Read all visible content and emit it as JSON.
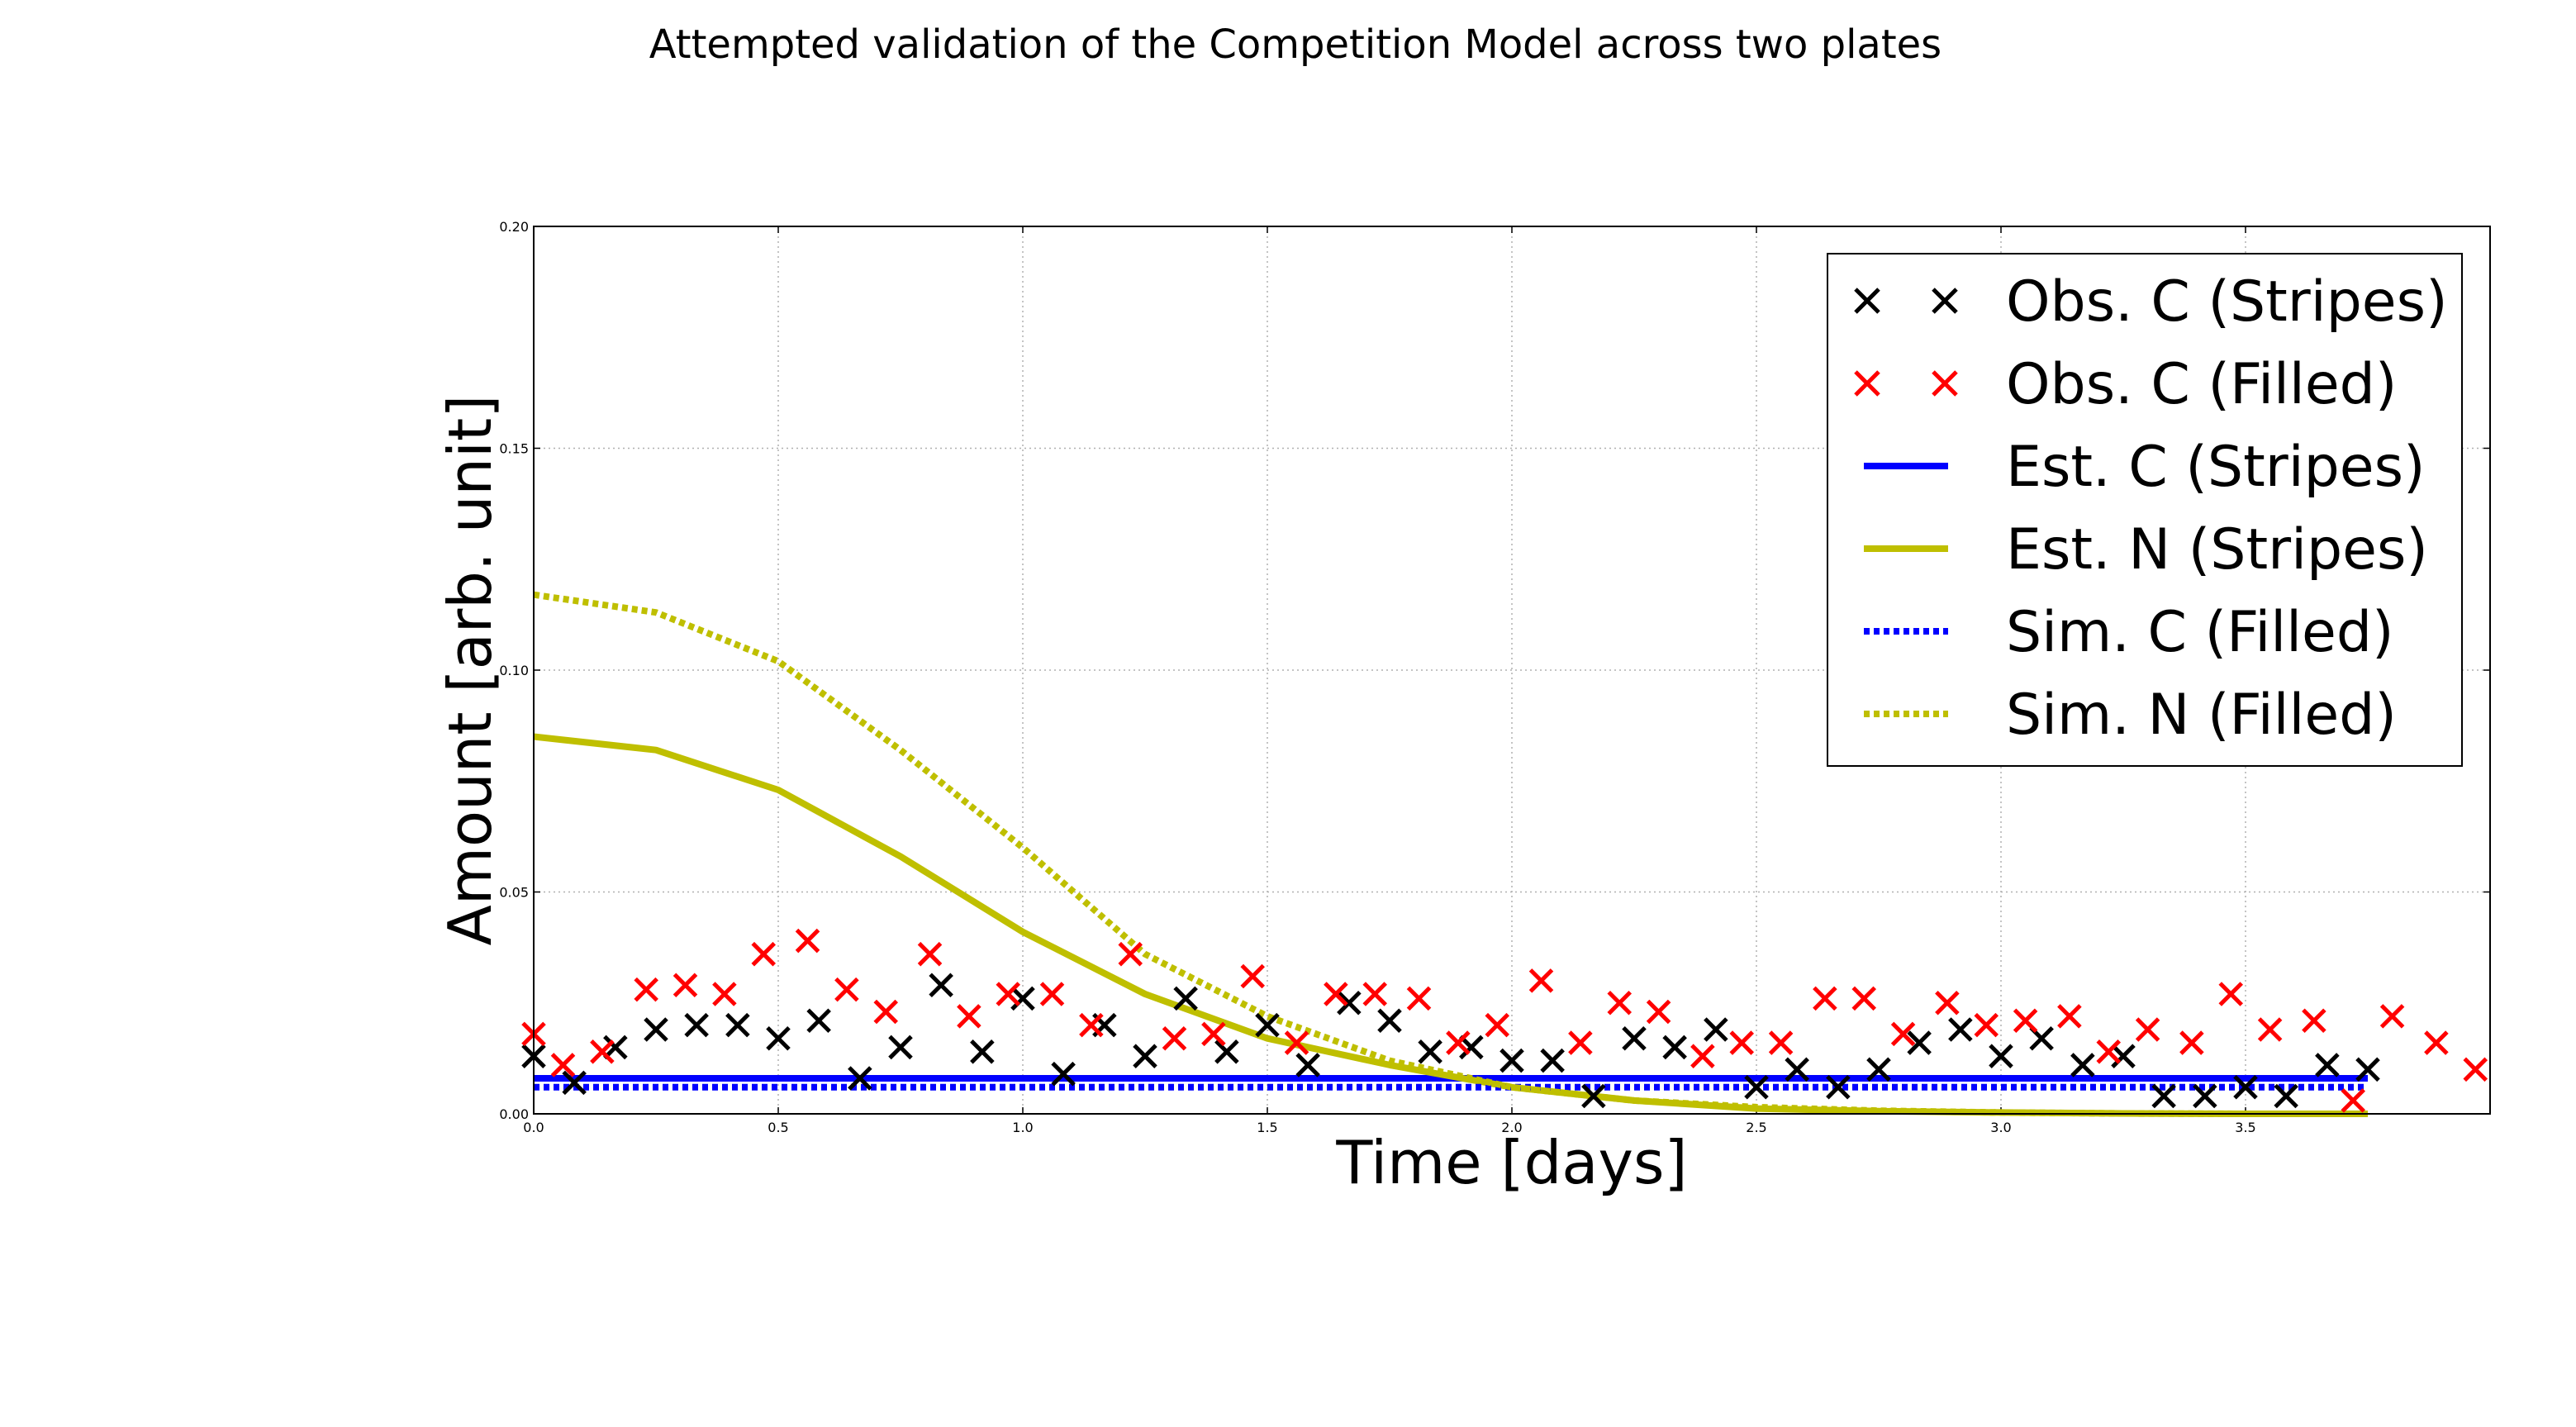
{
  "chart_data": {
    "type": "line",
    "title": "Attempted validation of the Competition Model across two plates",
    "xlabel": "Time [days]",
    "ylabel": "Amount [arb. unit]",
    "xlim": [
      0,
      4.0
    ],
    "ylim": [
      0,
      0.2
    ],
    "x_ticks": [
      "0.0",
      "0.5",
      "1.0",
      "1.5",
      "2.0",
      "2.5",
      "3.0",
      "3.5"
    ],
    "y_ticks": [
      "0.00",
      "0.05",
      "0.10",
      "0.15",
      "0.20"
    ],
    "grid": true,
    "legend_position": "top-right",
    "series": [
      {
        "name": "Obs. C (Stripes)",
        "kind": "scatter",
        "marker": "x",
        "color": "#000000",
        "x": [
          0.0,
          0.083,
          0.167,
          0.25,
          0.333,
          0.417,
          0.5,
          0.583,
          0.667,
          0.75,
          0.833,
          0.917,
          1.0,
          1.083,
          1.167,
          1.25,
          1.333,
          1.417,
          1.5,
          1.583,
          1.667,
          1.75,
          1.833,
          1.917,
          2.0,
          2.083,
          2.167,
          2.25,
          2.333,
          2.417,
          2.5,
          2.583,
          2.667,
          2.75,
          2.833,
          2.917,
          3.0,
          3.083,
          3.167,
          3.25,
          3.333,
          3.417,
          3.5,
          3.583,
          3.667,
          3.75
        ],
        "y": [
          0.013,
          0.007,
          0.015,
          0.019,
          0.02,
          0.02,
          0.017,
          0.021,
          0.008,
          0.015,
          0.029,
          0.014,
          0.026,
          0.009,
          0.02,
          0.013,
          0.026,
          0.014,
          0.02,
          0.011,
          0.025,
          0.021,
          0.014,
          0.015,
          0.012,
          0.012,
          0.004,
          0.017,
          0.015,
          0.019,
          0.006,
          0.01,
          0.006,
          0.01,
          0.016,
          0.019,
          0.013,
          0.017,
          0.011,
          0.013,
          0.004,
          0.004,
          0.006,
          0.004,
          0.011,
          0.01
        ]
      },
      {
        "name": "Obs. C (Filled)",
        "kind": "scatter",
        "marker": "x",
        "color": "#ff0000",
        "x": [
          0.0,
          0.06,
          0.14,
          0.23,
          0.31,
          0.39,
          0.47,
          0.56,
          0.64,
          0.72,
          0.81,
          0.89,
          0.97,
          1.06,
          1.14,
          1.22,
          1.31,
          1.39,
          1.47,
          1.56,
          1.64,
          1.72,
          1.81,
          1.89,
          1.97,
          2.06,
          2.14,
          2.22,
          2.3,
          2.39,
          2.47,
          2.55,
          2.64,
          2.72,
          2.8,
          2.89,
          2.97,
          3.05,
          3.14,
          3.22,
          3.3,
          3.39,
          3.47,
          3.55,
          3.64,
          3.72,
          3.8,
          3.89,
          3.97
        ],
        "y": [
          0.018,
          0.011,
          0.014,
          0.028,
          0.029,
          0.027,
          0.036,
          0.039,
          0.028,
          0.023,
          0.036,
          0.022,
          0.027,
          0.027,
          0.02,
          0.036,
          0.017,
          0.018,
          0.031,
          0.016,
          0.027,
          0.027,
          0.026,
          0.016,
          0.02,
          0.03,
          0.016,
          0.025,
          0.023,
          0.013,
          0.016,
          0.016,
          0.026,
          0.026,
          0.018,
          0.025,
          0.02,
          0.021,
          0.022,
          0.014,
          0.019,
          0.016,
          0.027,
          0.019,
          0.021,
          0.003,
          0.022,
          0.016,
          0.01
        ]
      },
      {
        "name": "Est. C (Stripes)",
        "kind": "line",
        "style": "solid",
        "color": "#0000ff",
        "x": [
          0.0,
          3.75
        ],
        "y": [
          0.008,
          0.008
        ]
      },
      {
        "name": "Est. N (Stripes)",
        "kind": "line",
        "style": "solid",
        "color": "#bfbf00",
        "x": [
          0.0,
          0.25,
          0.5,
          0.75,
          1.0,
          1.25,
          1.5,
          1.75,
          2.0,
          2.25,
          2.5,
          2.75,
          3.0,
          3.25,
          3.5,
          3.75
        ],
        "y": [
          0.085,
          0.082,
          0.073,
          0.058,
          0.041,
          0.027,
          0.017,
          0.011,
          0.006,
          0.003,
          0.0012,
          0.0006,
          0.0003,
          0.0001,
          0.0,
          0.0
        ]
      },
      {
        "name": "Sim. C (Filled)",
        "kind": "line",
        "style": "dotted",
        "color": "#0000ff",
        "x": [
          0.0,
          3.75
        ],
        "y": [
          0.006,
          0.006
        ]
      },
      {
        "name": "Sim. N (Filled)",
        "kind": "line",
        "style": "dotted",
        "color": "#bfbf00",
        "x": [
          0.0,
          0.25,
          0.5,
          0.75,
          1.0,
          1.25,
          1.5,
          1.75,
          2.0,
          2.25,
          2.5,
          2.75,
          3.0,
          3.25,
          3.5,
          3.75
        ],
        "y": [
          0.117,
          0.113,
          0.102,
          0.082,
          0.06,
          0.036,
          0.022,
          0.012,
          0.006,
          0.003,
          0.0015,
          0.0007,
          0.0003,
          0.0001,
          0.0,
          0.0
        ]
      }
    ]
  }
}
